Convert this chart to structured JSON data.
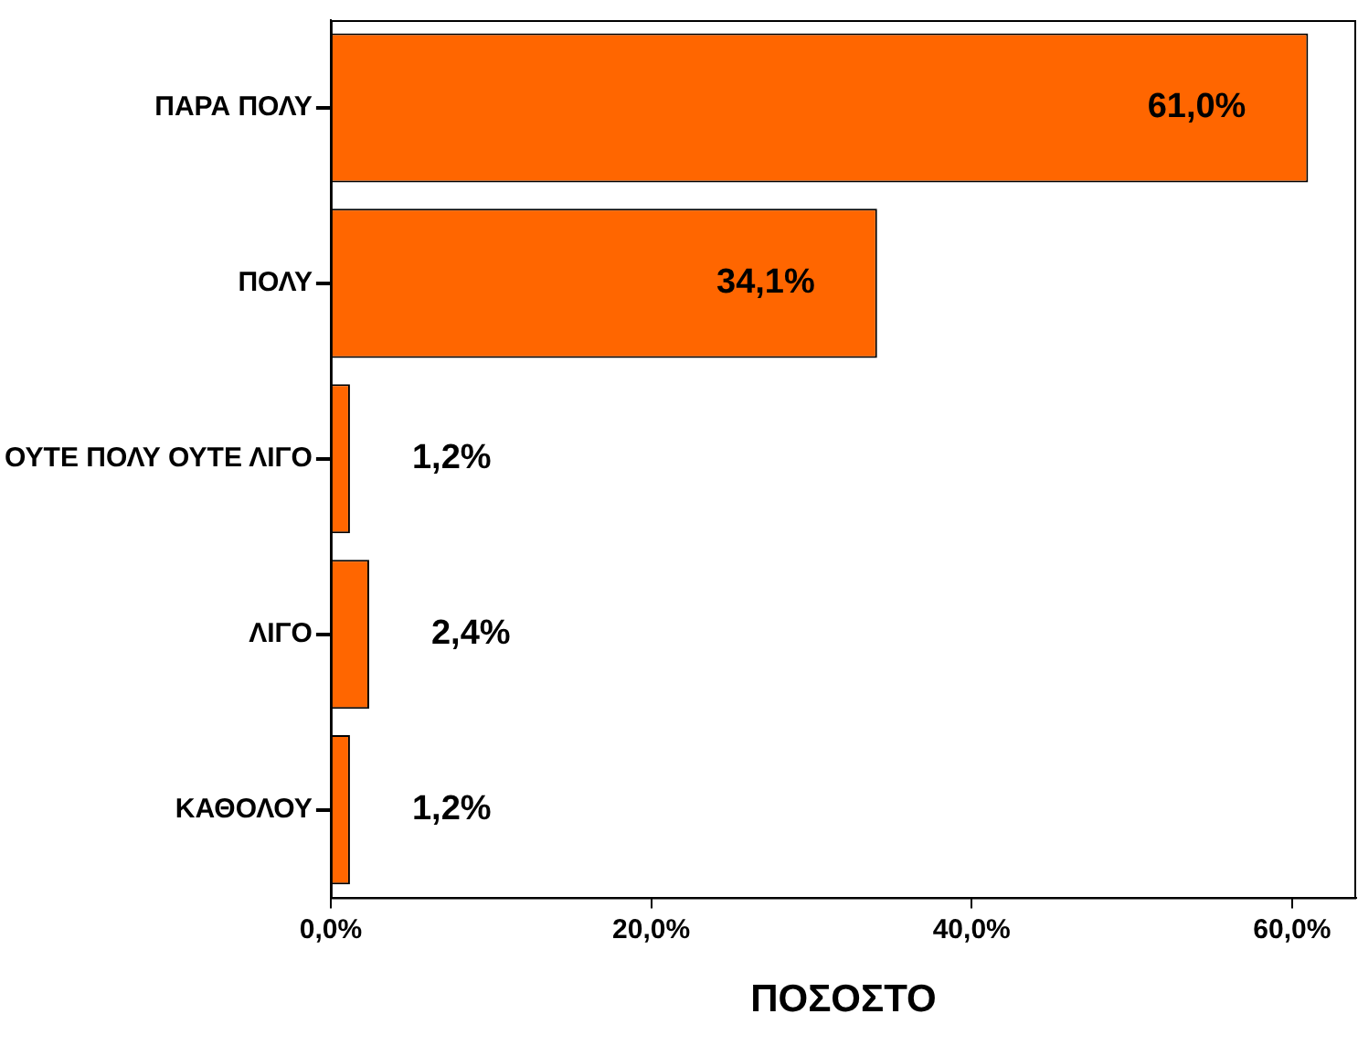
{
  "chart_data": {
    "type": "bar",
    "orientation": "horizontal",
    "xlabel": "ΠΟΣΟΣΤΟ",
    "categories": [
      "ΠΑΡΑ ΠΟΛΥ",
      "ΠΟΛΥ",
      "ΟΥΤΕ ΠΟΛΥ ΟΥΤΕ ΛΙΓΟ",
      "ΛΙΓΟ",
      "ΚΑΘΟΛΟΥ"
    ],
    "values": [
      61.0,
      34.1,
      1.2,
      2.4,
      1.2
    ],
    "value_labels": [
      "61,0%",
      "34,1%",
      "1,2%",
      "2,4%",
      "1,2%"
    ],
    "color": "#ff6600",
    "xlim": [
      0,
      64
    ],
    "xticks": [
      {
        "value": 0,
        "label": "0,0%"
      },
      {
        "value": 20,
        "label": "20,0%"
      },
      {
        "value": 40,
        "label": "40,0%"
      },
      {
        "value": 60,
        "label": "60,0%"
      }
    ],
    "grid": false,
    "legend": false
  }
}
